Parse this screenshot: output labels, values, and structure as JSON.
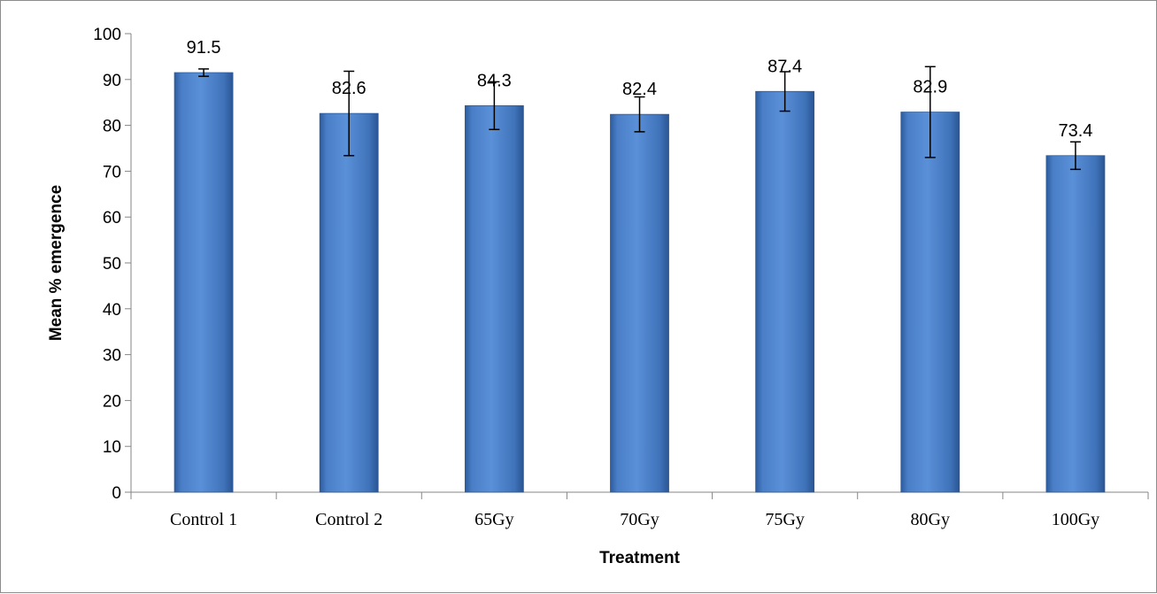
{
  "chart_data": {
    "type": "bar",
    "title": "",
    "xlabel": "Treatment",
    "ylabel": "Mean % emergence",
    "ylim": [
      0,
      100
    ],
    "yticks": [
      0,
      10,
      20,
      30,
      40,
      50,
      60,
      70,
      80,
      90,
      100
    ],
    "categories": [
      "Control 1",
      "Control 2",
      "65Gy",
      "70Gy",
      "75Gy",
      "80Gy",
      "100Gy"
    ],
    "values": [
      91.5,
      82.6,
      84.3,
      82.4,
      87.4,
      82.9,
      73.4
    ],
    "data_labels": [
      "91.5",
      "82.6",
      "84.3",
      "82.4",
      "87.4",
      "82.9",
      "73.4"
    ],
    "error_bars": [
      0.8,
      9.2,
      5.2,
      3.8,
      4.3,
      9.9,
      3.0
    ],
    "grid": false,
    "legend": "none",
    "colors": {
      "bar": "#4a7fc8",
      "bar_dark": "#2c5a9a",
      "axis": "#868686"
    }
  }
}
